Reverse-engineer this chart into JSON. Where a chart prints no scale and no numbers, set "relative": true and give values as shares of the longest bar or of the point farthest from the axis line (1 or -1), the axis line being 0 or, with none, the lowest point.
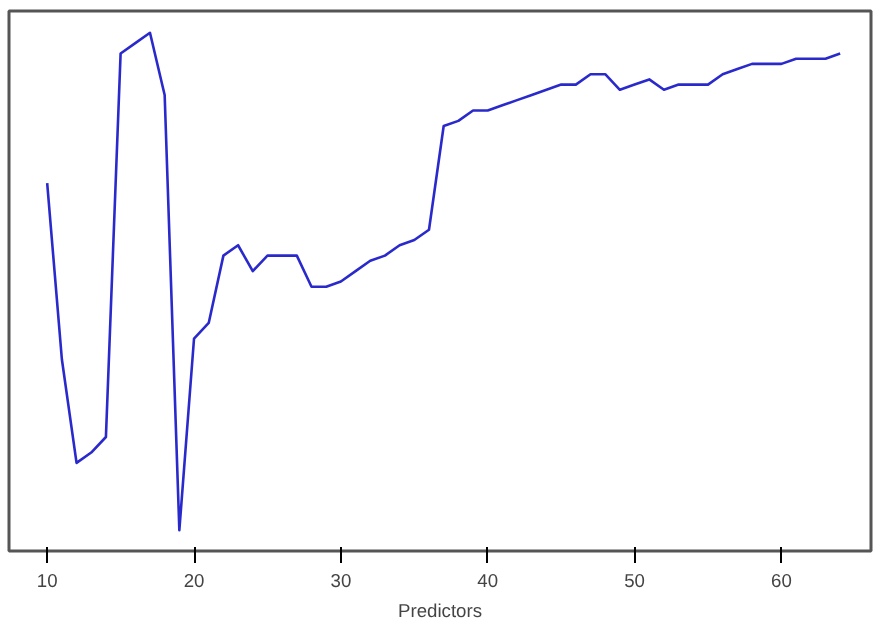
{
  "chart_data": {
    "type": "line",
    "xlabel": "Predictors",
    "relative": true,
    "grid": false,
    "xlim": [
      7.4,
      66.1
    ],
    "xticks": [
      10,
      20,
      30,
      40,
      50,
      60
    ],
    "x": [
      10,
      11,
      12,
      13,
      14,
      15,
      16,
      17,
      18,
      19,
      20,
      21,
      22,
      23,
      24,
      25,
      26,
      27,
      28,
      29,
      30,
      31,
      32,
      33,
      34,
      35,
      36,
      37,
      38,
      39,
      40,
      41,
      42,
      43,
      44,
      45,
      46,
      47,
      48,
      49,
      50,
      51,
      52,
      53,
      54,
      55,
      56,
      57,
      58,
      59,
      60,
      61,
      62,
      63,
      64
    ],
    "series": [
      {
        "color": "#2a2acc",
        "values": [
          0.71,
          0.37,
          0.17,
          0.19,
          0.22,
          0.96,
          0.98,
          1.0,
          0.88,
          0.04,
          0.41,
          0.44,
          0.57,
          0.59,
          0.54,
          0.57,
          0.57,
          0.57,
          0.51,
          0.51,
          0.52,
          0.54,
          0.56,
          0.57,
          0.59,
          0.6,
          0.62,
          0.82,
          0.83,
          0.85,
          0.85,
          0.86,
          0.87,
          0.88,
          0.89,
          0.9,
          0.9,
          0.92,
          0.92,
          0.89,
          0.9,
          0.91,
          0.89,
          0.9,
          0.9,
          0.9,
          0.92,
          0.93,
          0.94,
          0.94,
          0.94,
          0.95,
          0.95,
          0.95,
          0.96
        ]
      }
    ]
  }
}
